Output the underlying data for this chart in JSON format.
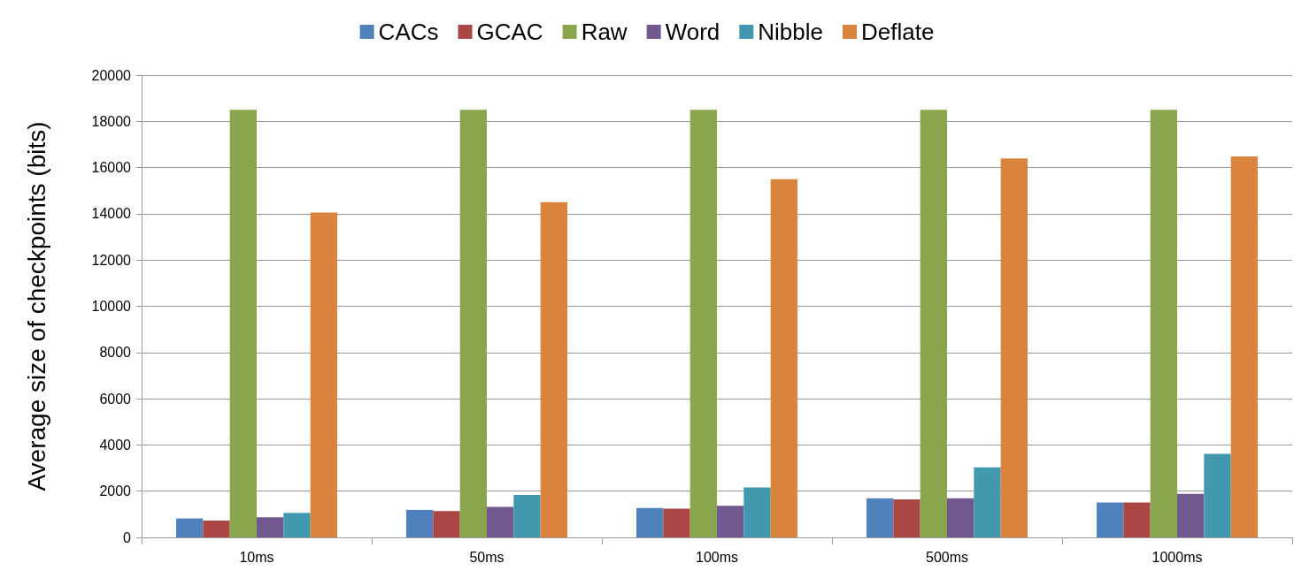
{
  "chart_data": {
    "type": "bar",
    "ylabel": "Average size of checkpoints (bits)",
    "categories": [
      "10ms",
      "50ms",
      "100ms",
      "500ms",
      "1000ms"
    ],
    "series": [
      {
        "name": "CACs",
        "color": "#4f81bd",
        "values": [
          820,
          1190,
          1270,
          1690,
          1510
        ]
      },
      {
        "name": "GCAC",
        "color": "#aa4643",
        "values": [
          730,
          1140,
          1240,
          1640,
          1510
        ]
      },
      {
        "name": "Raw",
        "color": "#89a54e",
        "values": [
          18500,
          18500,
          18500,
          18500,
          18500
        ]
      },
      {
        "name": "Word",
        "color": "#71588f",
        "values": [
          870,
          1320,
          1370,
          1690,
          1880
        ]
      },
      {
        "name": "Nibble",
        "color": "#4198af",
        "values": [
          1060,
          1840,
          2160,
          3030,
          3610
        ]
      },
      {
        "name": "Deflate",
        "color": "#db843d",
        "values": [
          14050,
          14500,
          15500,
          16400,
          16480
        ]
      }
    ],
    "ylim": [
      0,
      20000
    ],
    "yticks": [
      0,
      2000,
      4000,
      6000,
      8000,
      10000,
      12000,
      14000,
      16000,
      18000,
      20000
    ],
    "grid": "y",
    "legend": "top"
  }
}
